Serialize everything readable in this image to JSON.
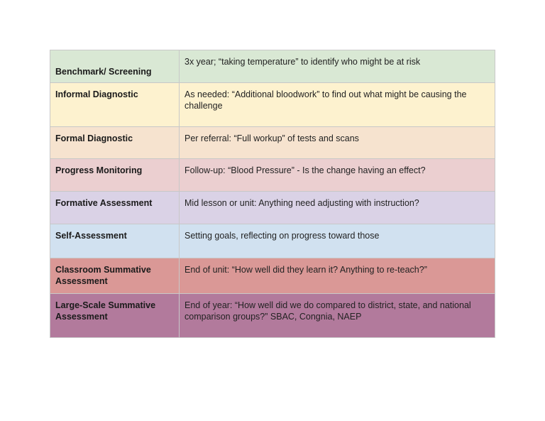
{
  "rows": [
    {
      "term": "Benchmark/ Screening",
      "description": "3x year; “taking temperature” to identify who might be at risk",
      "color": "#d9e8d4"
    },
    {
      "term": "Informal Diagnostic",
      "description": "As needed: “Additional bloodwork” to find out what might be causing the challenge",
      "color": "#fdf2cf"
    },
    {
      "term": "Formal Diagnostic",
      "description": "Per referral: “Full workup” of tests and scans",
      "color": "#f6e3cf"
    },
    {
      "term": "Progress Monitoring",
      "description": "Follow-up: “Blood Pressure” - Is the change having an effect?",
      "color": "#ebcfd0"
    },
    {
      "term": "Formative Assessment",
      "description": "Mid lesson or unit:  Anything need adjusting with instruction?",
      "color": "#dad2e6"
    },
    {
      "term": "Self-Assessment",
      "description": "Setting goals, reflecting on progress toward those",
      "color": "#d1e1f0"
    },
    {
      "term": "Classroom Summative Assessment",
      "description": "End of unit:  “How well did they learn it?  Anything to re-teach?”",
      "color": "#da9896"
    },
    {
      "term": "Large-Scale Summative Assessment",
      "description": "End of year: “How well did we do compared to district, state, and national comparison groups?” SBAC, Congnia, NAEP",
      "color": "#b27a9c"
    }
  ]
}
